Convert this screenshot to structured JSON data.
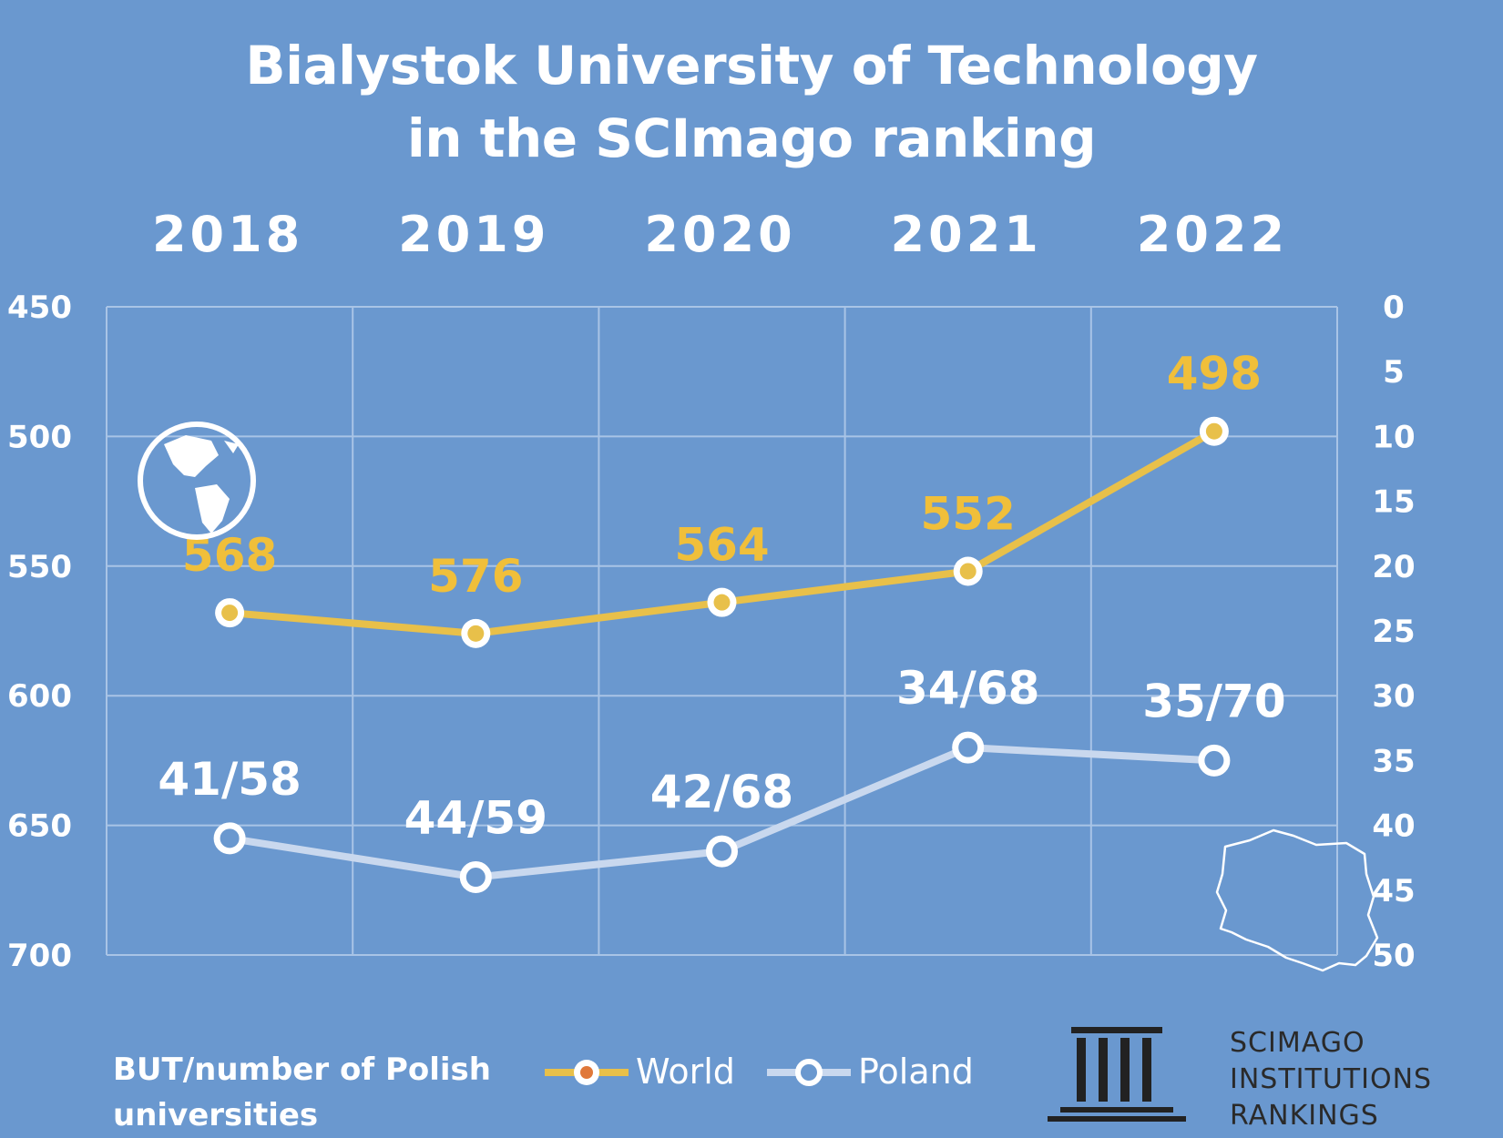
{
  "title_line1": "Bialystok University of Technology",
  "title_line2": "in the SCImago ranking",
  "note_line1": "BUT/number of Polish",
  "note_line2": "universities",
  "legend": {
    "world": "World",
    "poland": "Poland"
  },
  "brand": {
    "line1": "SCIMAGO",
    "line2": "INSTITUTIONS",
    "line3": "RANKINGS"
  },
  "icons": {
    "globe": "globe-icon",
    "poland_map": "poland-map-icon",
    "logo": "institution-columns-icon"
  },
  "colors": {
    "background": "#6a98cf",
    "world": "#e8c04a",
    "poland": "#c9d8ee",
    "label_world": "#f0bf3a",
    "text": "#ffffff"
  },
  "chart_data": {
    "type": "line",
    "categories": [
      "2018",
      "2019",
      "2020",
      "2021",
      "2022"
    ],
    "left_axis": {
      "ticks": [
        "450",
        "500",
        "550",
        "600",
        "650",
        "700"
      ],
      "ylim": [
        450,
        700
      ],
      "inverted": true
    },
    "right_axis": {
      "ticks": [
        "0",
        "5",
        "10",
        "15",
        "20",
        "25",
        "30",
        "35",
        "40",
        "45",
        "50"
      ],
      "ylim": [
        0,
        50
      ],
      "inverted": true
    },
    "grid": true,
    "legend_position": "bottom",
    "series": [
      {
        "name": "World",
        "axis": "left",
        "values": [
          568,
          576,
          564,
          552,
          498
        ],
        "labels": [
          "568",
          "576",
          "564",
          "552",
          "498"
        ]
      },
      {
        "name": "Poland",
        "axis": "right",
        "values": [
          41,
          44,
          42,
          34,
          35
        ],
        "labels": [
          "41/58",
          "44/59",
          "42/68",
          "34/68",
          "35/70"
        ]
      }
    ]
  }
}
